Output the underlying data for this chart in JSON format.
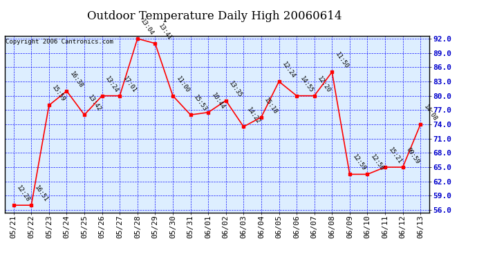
{
  "title": "Outdoor Temperature Daily High 20060614",
  "copyright": "Copyright 2006 Cantronics.com",
  "background_color": "#ffffff",
  "plot_bg_color": "#ddeeff",
  "grid_color": "#0000ff",
  "line_color": "#ff0000",
  "marker_color": "#ff0000",
  "text_color": "#000000",
  "ytick_color": "#0000cc",
  "ylim_min": 55.5,
  "ylim_max": 92.5,
  "yticks": [
    56.0,
    59.0,
    62.0,
    65.0,
    68.0,
    71.0,
    74.0,
    77.0,
    80.0,
    83.0,
    86.0,
    89.0,
    92.0
  ],
  "dates": [
    "05/21",
    "05/22",
    "05/23",
    "05/24",
    "05/25",
    "05/26",
    "05/27",
    "05/28",
    "05/29",
    "05/30",
    "05/31",
    "06/01",
    "06/02",
    "06/03",
    "06/04",
    "06/05",
    "06/06",
    "06/07",
    "06/08",
    "06/09",
    "06/10",
    "06/11",
    "06/12",
    "06/13"
  ],
  "temps": [
    57.0,
    57.0,
    78.0,
    81.0,
    76.0,
    80.0,
    80.0,
    92.0,
    91.0,
    80.0,
    76.0,
    76.5,
    79.0,
    73.5,
    75.5,
    83.0,
    80.0,
    80.0,
    85.0,
    63.5,
    63.5,
    65.0,
    65.0,
    74.0
  ],
  "time_labels": [
    "12:28",
    "16:51",
    "15:59",
    "16:38",
    "13:42",
    "13:24",
    "17:01",
    "13:04",
    "13:41",
    "11:00",
    "15:53",
    "10:44",
    "13:35",
    "14:22",
    "15:18",
    "12:24",
    "14:55",
    "12:20",
    "11:50",
    "12:59",
    "12:56",
    "15:21",
    "09:59",
    "14:08"
  ],
  "title_fontsize": 12,
  "copyright_fontsize": 6.5,
  "label_fontsize": 6.5,
  "tick_fontsize": 8
}
